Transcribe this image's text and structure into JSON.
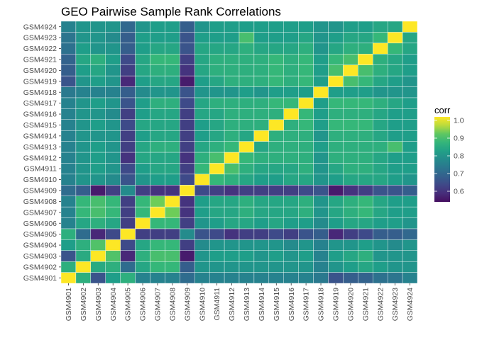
{
  "chart_data": {
    "type": "heatmap",
    "title": "GEO Pairwise Sample Rank Correlations",
    "xlabel": "",
    "ylabel": "",
    "samples": [
      "GSM4901",
      "GSM4902",
      "GSM4903",
      "GSM4904",
      "GSM4905",
      "GSM4906",
      "GSM4907",
      "GSM4908",
      "GSM4909",
      "GSM4910",
      "GSM4911",
      "GSM4912",
      "GSM4913",
      "GSM4914",
      "GSM4915",
      "GSM4916",
      "GSM4917",
      "GSM4918",
      "GSM4919",
      "GSM4920",
      "GSM4921",
      "GSM4922",
      "GSM4923",
      "GSM4924"
    ],
    "matrix": [
      [
        1.0,
        0.86,
        0.66,
        0.82,
        0.86,
        0.76,
        0.76,
        0.76,
        0.71,
        0.76,
        0.76,
        0.76,
        0.76,
        0.76,
        0.76,
        0.76,
        0.76,
        0.74,
        0.66,
        0.68,
        0.69,
        0.72,
        0.73,
        0.76
      ],
      [
        0.86,
        1.0,
        0.85,
        0.86,
        0.71,
        0.84,
        0.88,
        0.88,
        0.68,
        0.8,
        0.8,
        0.8,
        0.8,
        0.8,
        0.8,
        0.8,
        0.8,
        0.76,
        0.8,
        0.82,
        0.84,
        0.82,
        0.8,
        0.8
      ],
      [
        0.66,
        0.85,
        1.0,
        0.91,
        0.58,
        0.86,
        0.9,
        0.9,
        0.56,
        0.8,
        0.82,
        0.82,
        0.82,
        0.8,
        0.82,
        0.8,
        0.82,
        0.76,
        0.82,
        0.84,
        0.86,
        0.8,
        0.8,
        0.8
      ],
      [
        0.82,
        0.86,
        0.91,
        1.0,
        0.64,
        0.84,
        0.88,
        0.88,
        0.62,
        0.78,
        0.8,
        0.8,
        0.8,
        0.8,
        0.8,
        0.78,
        0.8,
        0.76,
        0.8,
        0.8,
        0.82,
        0.8,
        0.78,
        0.8
      ],
      [
        0.86,
        0.71,
        0.58,
        0.64,
        1.0,
        0.62,
        0.62,
        0.62,
        0.78,
        0.66,
        0.64,
        0.6,
        0.62,
        0.62,
        0.64,
        0.62,
        0.66,
        0.68,
        0.58,
        0.62,
        0.64,
        0.68,
        0.68,
        0.7
      ],
      [
        0.76,
        0.84,
        0.86,
        0.84,
        0.62,
        1.0,
        0.88,
        0.88,
        0.62,
        0.8,
        0.82,
        0.84,
        0.84,
        0.82,
        0.84,
        0.82,
        0.82,
        0.78,
        0.82,
        0.84,
        0.84,
        0.82,
        0.82,
        0.8
      ],
      [
        0.76,
        0.88,
        0.9,
        0.88,
        0.62,
        0.88,
        1.0,
        0.94,
        0.6,
        0.82,
        0.84,
        0.84,
        0.86,
        0.84,
        0.84,
        0.84,
        0.86,
        0.8,
        0.84,
        0.86,
        0.88,
        0.84,
        0.82,
        0.82
      ],
      [
        0.76,
        0.88,
        0.9,
        0.88,
        0.62,
        0.88,
        0.94,
        1.0,
        0.6,
        0.82,
        0.84,
        0.84,
        0.86,
        0.84,
        0.84,
        0.84,
        0.86,
        0.8,
        0.84,
        0.86,
        0.88,
        0.84,
        0.82,
        0.82
      ],
      [
        0.71,
        0.68,
        0.56,
        0.62,
        0.78,
        0.62,
        0.6,
        0.6,
        1.0,
        0.64,
        0.62,
        0.6,
        0.62,
        0.62,
        0.62,
        0.62,
        0.64,
        0.66,
        0.56,
        0.6,
        0.62,
        0.66,
        0.66,
        0.68
      ],
      [
        0.76,
        0.8,
        0.8,
        0.78,
        0.66,
        0.8,
        0.82,
        0.82,
        0.64,
        1.0,
        0.88,
        0.86,
        0.84,
        0.82,
        0.82,
        0.84,
        0.84,
        0.8,
        0.82,
        0.84,
        0.84,
        0.84,
        0.82,
        0.8
      ],
      [
        0.76,
        0.8,
        0.82,
        0.8,
        0.64,
        0.82,
        0.84,
        0.84,
        0.62,
        0.88,
        1.0,
        0.9,
        0.86,
        0.84,
        0.84,
        0.84,
        0.86,
        0.8,
        0.84,
        0.86,
        0.86,
        0.84,
        0.82,
        0.82
      ],
      [
        0.76,
        0.8,
        0.82,
        0.8,
        0.6,
        0.84,
        0.84,
        0.84,
        0.6,
        0.86,
        0.9,
        1.0,
        0.88,
        0.86,
        0.86,
        0.86,
        0.86,
        0.8,
        0.86,
        0.86,
        0.86,
        0.84,
        0.82,
        0.82
      ],
      [
        0.76,
        0.8,
        0.82,
        0.8,
        0.62,
        0.84,
        0.86,
        0.86,
        0.62,
        0.84,
        0.86,
        0.88,
        1.0,
        0.84,
        0.86,
        0.86,
        0.86,
        0.82,
        0.86,
        0.86,
        0.86,
        0.86,
        0.9,
        0.82
      ],
      [
        0.76,
        0.8,
        0.8,
        0.8,
        0.62,
        0.82,
        0.84,
        0.84,
        0.62,
        0.82,
        0.84,
        0.86,
        0.84,
        1.0,
        0.86,
        0.86,
        0.86,
        0.8,
        0.86,
        0.86,
        0.86,
        0.84,
        0.82,
        0.82
      ],
      [
        0.76,
        0.8,
        0.82,
        0.8,
        0.64,
        0.84,
        0.84,
        0.84,
        0.62,
        0.82,
        0.84,
        0.86,
        0.86,
        0.86,
        1.0,
        0.86,
        0.88,
        0.82,
        0.88,
        0.88,
        0.88,
        0.84,
        0.82,
        0.82
      ],
      [
        0.76,
        0.8,
        0.8,
        0.78,
        0.62,
        0.82,
        0.84,
        0.84,
        0.62,
        0.84,
        0.84,
        0.86,
        0.86,
        0.86,
        0.86,
        1.0,
        0.88,
        0.82,
        0.86,
        0.86,
        0.86,
        0.84,
        0.82,
        0.82
      ],
      [
        0.76,
        0.8,
        0.82,
        0.8,
        0.66,
        0.82,
        0.86,
        0.86,
        0.64,
        0.84,
        0.86,
        0.86,
        0.86,
        0.86,
        0.88,
        0.88,
        1.0,
        0.82,
        0.88,
        0.88,
        0.88,
        0.86,
        0.84,
        0.82
      ],
      [
        0.74,
        0.76,
        0.76,
        0.76,
        0.68,
        0.78,
        0.8,
        0.8,
        0.66,
        0.8,
        0.8,
        0.8,
        0.82,
        0.8,
        0.82,
        0.82,
        0.82,
        1.0,
        0.82,
        0.82,
        0.82,
        0.8,
        0.8,
        0.8
      ],
      [
        0.66,
        0.8,
        0.82,
        0.8,
        0.58,
        0.82,
        0.84,
        0.84,
        0.56,
        0.82,
        0.84,
        0.86,
        0.86,
        0.86,
        0.88,
        0.86,
        0.88,
        0.82,
        1.0,
        0.9,
        0.88,
        0.84,
        0.82,
        0.8
      ],
      [
        0.68,
        0.82,
        0.84,
        0.8,
        0.62,
        0.84,
        0.86,
        0.86,
        0.6,
        0.84,
        0.86,
        0.86,
        0.86,
        0.86,
        0.88,
        0.86,
        0.88,
        0.82,
        0.9,
        1.0,
        0.9,
        0.86,
        0.84,
        0.82
      ],
      [
        0.69,
        0.84,
        0.86,
        0.82,
        0.64,
        0.84,
        0.88,
        0.88,
        0.62,
        0.84,
        0.86,
        0.86,
        0.86,
        0.86,
        0.88,
        0.86,
        0.88,
        0.82,
        0.88,
        0.9,
        1.0,
        0.86,
        0.84,
        0.82
      ],
      [
        0.72,
        0.82,
        0.8,
        0.8,
        0.68,
        0.82,
        0.84,
        0.84,
        0.66,
        0.84,
        0.84,
        0.84,
        0.86,
        0.84,
        0.84,
        0.84,
        0.86,
        0.8,
        0.84,
        0.86,
        0.86,
        1.0,
        0.88,
        0.84
      ],
      [
        0.73,
        0.8,
        0.8,
        0.78,
        0.68,
        0.82,
        0.82,
        0.82,
        0.66,
        0.82,
        0.82,
        0.82,
        0.9,
        0.82,
        0.82,
        0.82,
        0.84,
        0.8,
        0.82,
        0.84,
        0.84,
        0.88,
        1.0,
        0.84
      ],
      [
        0.76,
        0.8,
        0.8,
        0.8,
        0.7,
        0.8,
        0.82,
        0.82,
        0.68,
        0.8,
        0.82,
        0.82,
        0.82,
        0.82,
        0.82,
        0.82,
        0.82,
        0.8,
        0.8,
        0.82,
        0.82,
        0.84,
        0.84,
        1.0
      ]
    ],
    "color_scale": {
      "name": "viridis",
      "min": 0.52,
      "max": 1.0,
      "low_color": "#440154",
      "high_color": "#fde725"
    },
    "legend": {
      "title": "corr",
      "ticks": [
        "1.0",
        "0.9",
        "0.8",
        "0.7",
        "0.6"
      ],
      "tick_values": [
        1.0,
        0.9,
        0.8,
        0.7,
        0.6
      ],
      "placement": "right"
    },
    "panel_background": "#ebebeb",
    "cell_border_color": "#ffffff",
    "grid": false
  }
}
